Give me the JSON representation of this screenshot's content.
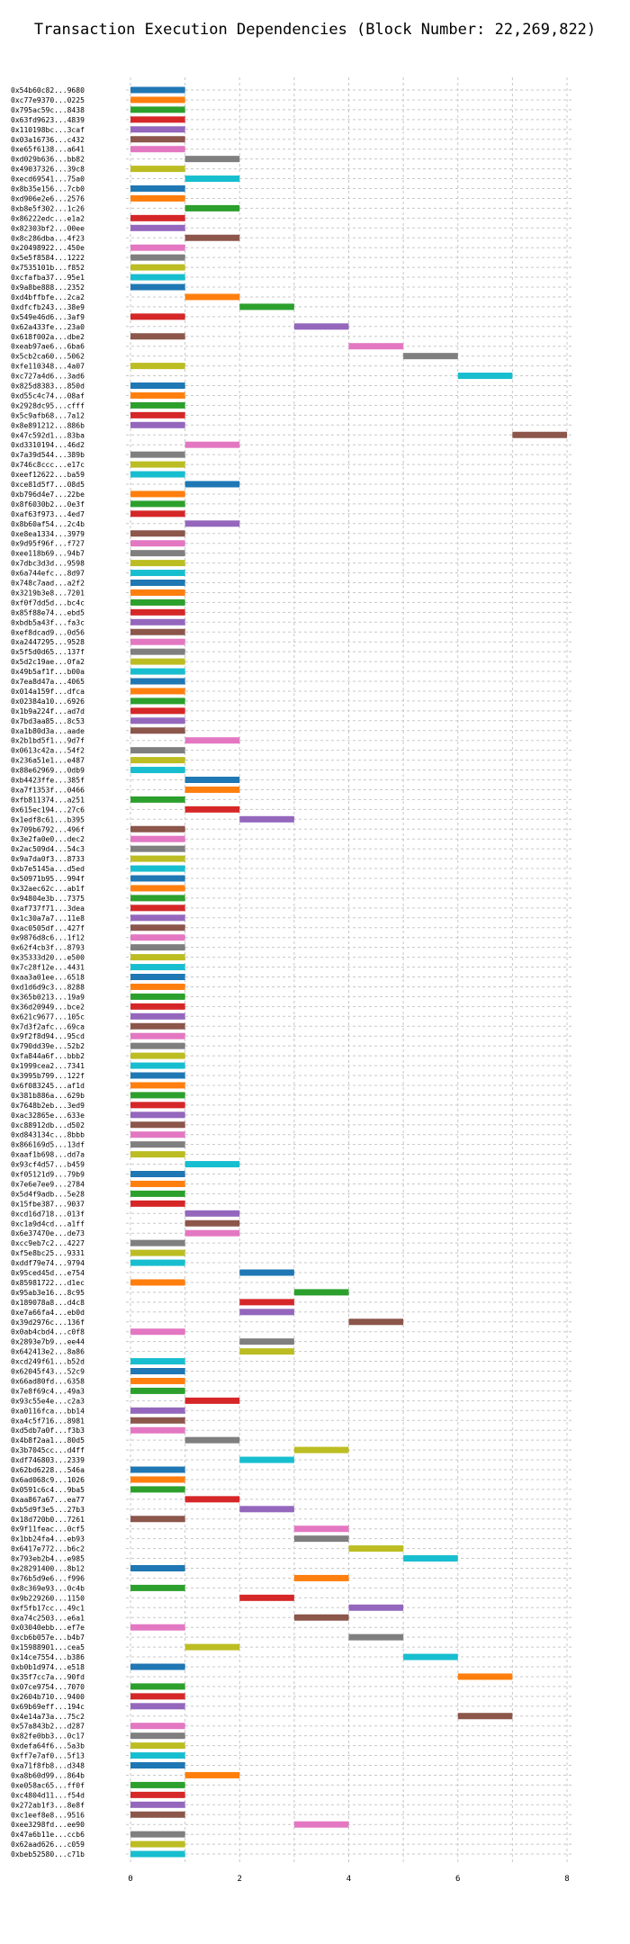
{
  "chart_data": {
    "type": "bar",
    "orientation": "horizontal",
    "title": "Transaction Execution Dependencies (Block Number: 22,269,822)",
    "xlabel": "",
    "ylabel": "",
    "xlim": [
      0,
      8
    ],
    "xticks": [
      "0",
      "2",
      "4",
      "6",
      "8"
    ],
    "grid": true,
    "colors": [
      "#1f77b4",
      "#ff7f0e",
      "#2ca02c",
      "#d62728",
      "#9467bd",
      "#8c564b",
      "#e377c2",
      "#7f7f7f",
      "#bcbd22",
      "#17becf"
    ],
    "transactions": [
      {
        "label": "0x54b60c82...9680",
        "start": 0,
        "end": 1
      },
      {
        "label": "0xc77e9370...0225",
        "start": 0,
        "end": 1
      },
      {
        "label": "0x795ac59c...8438",
        "start": 0,
        "end": 1
      },
      {
        "label": "0x63fd9623...4839",
        "start": 0,
        "end": 1
      },
      {
        "label": "0x110198bc...3caf",
        "start": 0,
        "end": 1
      },
      {
        "label": "0x03a16736...c432",
        "start": 0,
        "end": 1
      },
      {
        "label": "0xe65f6138...a641",
        "start": 0,
        "end": 1
      },
      {
        "label": "0xd029b636...bb82",
        "start": 1,
        "end": 2
      },
      {
        "label": "0x49037326...39c8",
        "start": 0,
        "end": 1
      },
      {
        "label": "0xecd69541...75a0",
        "start": 1,
        "end": 2
      },
      {
        "label": "0x8b35e156...7cb0",
        "start": 0,
        "end": 1
      },
      {
        "label": "0xd906e2e6...2576",
        "start": 0,
        "end": 1
      },
      {
        "label": "0xb8e5f302...1c26",
        "start": 1,
        "end": 2
      },
      {
        "label": "0x86222edc...e1a2",
        "start": 0,
        "end": 1
      },
      {
        "label": "0x82303bf2...00ee",
        "start": 0,
        "end": 1
      },
      {
        "label": "0x8c286dba...4f23",
        "start": 1,
        "end": 2
      },
      {
        "label": "0x20498922...450e",
        "start": 0,
        "end": 1
      },
      {
        "label": "0x5e5f8584...1222",
        "start": 0,
        "end": 1
      },
      {
        "label": "0x7535101b...f852",
        "start": 0,
        "end": 1
      },
      {
        "label": "0xcfafba37...95e1",
        "start": 0,
        "end": 1
      },
      {
        "label": "0x9a8be888...2352",
        "start": 0,
        "end": 1
      },
      {
        "label": "0xd4bffbfe...2ca2",
        "start": 1,
        "end": 2
      },
      {
        "label": "0xdfcfb243...38e9",
        "start": 2,
        "end": 3
      },
      {
        "label": "0x549e46d6...3af9",
        "start": 0,
        "end": 1
      },
      {
        "label": "0x62a433fe...23a0",
        "start": 3,
        "end": 4
      },
      {
        "label": "0x618f002a...dbe2",
        "start": 0,
        "end": 1
      },
      {
        "label": "0xeab97ae6...6ba6",
        "start": 4,
        "end": 5
      },
      {
        "label": "0x5cb2ca60...5062",
        "start": 5,
        "end": 6
      },
      {
        "label": "0xfe110348...4a07",
        "start": 0,
        "end": 1
      },
      {
        "label": "0xc727a4d6...3ad6",
        "start": 6,
        "end": 7
      },
      {
        "label": "0x825d8383...850d",
        "start": 0,
        "end": 1
      },
      {
        "label": "0xd55c4c74...08af",
        "start": 0,
        "end": 1
      },
      {
        "label": "0x2928dc95...cfff",
        "start": 0,
        "end": 1
      },
      {
        "label": "0x5c9afb68...7a12",
        "start": 0,
        "end": 1
      },
      {
        "label": "0x8e891212...886b",
        "start": 0,
        "end": 1
      },
      {
        "label": "0x47c592d1...83ba",
        "start": 7,
        "end": 8
      },
      {
        "label": "0xd3310194...46d2",
        "start": 1,
        "end": 2
      },
      {
        "label": "0x7a39d544...389b",
        "start": 0,
        "end": 1
      },
      {
        "label": "0x746c8ccc...e17c",
        "start": 0,
        "end": 1
      },
      {
        "label": "0xeef12622...ba59",
        "start": 0,
        "end": 1
      },
      {
        "label": "0xce81d5f7...08d5",
        "start": 1,
        "end": 2
      },
      {
        "label": "0xb796d4e7...22be",
        "start": 0,
        "end": 1
      },
      {
        "label": "0x8f6030b2...0e3f",
        "start": 0,
        "end": 1
      },
      {
        "label": "0xaf63f973...4ed7",
        "start": 0,
        "end": 1
      },
      {
        "label": "0x8b60af54...2c4b",
        "start": 1,
        "end": 2
      },
      {
        "label": "0xe8ea1334...3979",
        "start": 0,
        "end": 1
      },
      {
        "label": "0x9d95f96f...f727",
        "start": 0,
        "end": 1
      },
      {
        "label": "0xee118b69...94b7",
        "start": 0,
        "end": 1
      },
      {
        "label": "0x7dbc3d3d...9598",
        "start": 0,
        "end": 1
      },
      {
        "label": "0x6a744efc...8d97",
        "start": 0,
        "end": 1
      },
      {
        "label": "0x748c7aad...a2f2",
        "start": 0,
        "end": 1
      },
      {
        "label": "0x3219b3e8...7201",
        "start": 0,
        "end": 1
      },
      {
        "label": "0xf0f7dd5d...bc4c",
        "start": 0,
        "end": 1
      },
      {
        "label": "0x85f88e74...ebd5",
        "start": 0,
        "end": 1
      },
      {
        "label": "0xbdb5a43f...fa3c",
        "start": 0,
        "end": 1
      },
      {
        "label": "0xef8dcad9...0d56",
        "start": 0,
        "end": 1
      },
      {
        "label": "0xa2447295...9528",
        "start": 0,
        "end": 1
      },
      {
        "label": "0x5f5d0d65...137f",
        "start": 0,
        "end": 1
      },
      {
        "label": "0x5d2c19ae...0fa2",
        "start": 0,
        "end": 1
      },
      {
        "label": "0x49b5af1f...b00a",
        "start": 0,
        "end": 1
      },
      {
        "label": "0x7ea8d47a...4065",
        "start": 0,
        "end": 1
      },
      {
        "label": "0x014a159f...dfca",
        "start": 0,
        "end": 1
      },
      {
        "label": "0x02384a10...6926",
        "start": 0,
        "end": 1
      },
      {
        "label": "0x1b9a224f...ad7d",
        "start": 0,
        "end": 1
      },
      {
        "label": "0x7bd3aa85...8c53",
        "start": 0,
        "end": 1
      },
      {
        "label": "0xa1b80d3a...aade",
        "start": 0,
        "end": 1
      },
      {
        "label": "0x2b1bd5f1...9d7f",
        "start": 1,
        "end": 2
      },
      {
        "label": "0x0613c42a...54f2",
        "start": 0,
        "end": 1
      },
      {
        "label": "0x236a51e1...e487",
        "start": 0,
        "end": 1
      },
      {
        "label": "0x88e62969...0db9",
        "start": 0,
        "end": 1
      },
      {
        "label": "0xb4423ffe...385f",
        "start": 1,
        "end": 2
      },
      {
        "label": "0xa7f1353f...0466",
        "start": 1,
        "end": 2
      },
      {
        "label": "0xfb811374...a251",
        "start": 0,
        "end": 1
      },
      {
        "label": "0x615ec194...27c6",
        "start": 1,
        "end": 2
      },
      {
        "label": "0x1edf8c61...b395",
        "start": 2,
        "end": 3
      },
      {
        "label": "0x709b6792...496f",
        "start": 0,
        "end": 1
      },
      {
        "label": "0x3e2fa0e0...dec2",
        "start": 0,
        "end": 1
      },
      {
        "label": "0x2ac509d4...54c3",
        "start": 0,
        "end": 1
      },
      {
        "label": "0x9a7da0f3...8733",
        "start": 0,
        "end": 1
      },
      {
        "label": "0xb7e5145a...d5ed",
        "start": 0,
        "end": 1
      },
      {
        "label": "0x50971b95...994f",
        "start": 0,
        "end": 1
      },
      {
        "label": "0x32aec62c...ab1f",
        "start": 0,
        "end": 1
      },
      {
        "label": "0x94804e3b...7375",
        "start": 0,
        "end": 1
      },
      {
        "label": "0xaf737f71...3dea",
        "start": 0,
        "end": 1
      },
      {
        "label": "0x1c30a7a7...11e8",
        "start": 0,
        "end": 1
      },
      {
        "label": "0xac0505df...427f",
        "start": 0,
        "end": 1
      },
      {
        "label": "0x9876d8c6...1f12",
        "start": 0,
        "end": 1
      },
      {
        "label": "0x62f4cb3f...8793",
        "start": 0,
        "end": 1
      },
      {
        "label": "0x35333d20...e500",
        "start": 0,
        "end": 1
      },
      {
        "label": "0x7c28f12e...4431",
        "start": 0,
        "end": 1
      },
      {
        "label": "0xaa3a01ee...6518",
        "start": 0,
        "end": 1
      },
      {
        "label": "0xd1d6d9c3...8288",
        "start": 0,
        "end": 1
      },
      {
        "label": "0x365b0213...19a9",
        "start": 0,
        "end": 1
      },
      {
        "label": "0x36d20949...bce2",
        "start": 0,
        "end": 1
      },
      {
        "label": "0x621c9677...105c",
        "start": 0,
        "end": 1
      },
      {
        "label": "0x7d3f2afc...69ca",
        "start": 0,
        "end": 1
      },
      {
        "label": "0x9f2f8d94...95cd",
        "start": 0,
        "end": 1
      },
      {
        "label": "0x790dd39e...52b2",
        "start": 0,
        "end": 1
      },
      {
        "label": "0xfa844a6f...bbb2",
        "start": 0,
        "end": 1
      },
      {
        "label": "0x1999cea2...7341",
        "start": 0,
        "end": 1
      },
      {
        "label": "0x3995b799...122f",
        "start": 0,
        "end": 1
      },
      {
        "label": "0x6f083245...af1d",
        "start": 0,
        "end": 1
      },
      {
        "label": "0x381b886a...629b",
        "start": 0,
        "end": 1
      },
      {
        "label": "0x7648b2eb...3ed9",
        "start": 0,
        "end": 1
      },
      {
        "label": "0xac32865e...633e",
        "start": 0,
        "end": 1
      },
      {
        "label": "0xc88912db...d502",
        "start": 0,
        "end": 1
      },
      {
        "label": "0xd843134c...8bbb",
        "start": 0,
        "end": 1
      },
      {
        "label": "0x866169d5...13df",
        "start": 0,
        "end": 1
      },
      {
        "label": "0xaaf1b698...dd7a",
        "start": 0,
        "end": 1
      },
      {
        "label": "0x93cf4d57...b459",
        "start": 1,
        "end": 2
      },
      {
        "label": "0xf05121d9...79b9",
        "start": 0,
        "end": 1
      },
      {
        "label": "0x7e6e7ee9...2784",
        "start": 0,
        "end": 1
      },
      {
        "label": "0x5d4f9adb...5e28",
        "start": 0,
        "end": 1
      },
      {
        "label": "0x15fbe387...9037",
        "start": 0,
        "end": 1
      },
      {
        "label": "0xcd16d718...013f",
        "start": 1,
        "end": 2
      },
      {
        "label": "0xc1a9d4cd...a1ff",
        "start": 1,
        "end": 2
      },
      {
        "label": "0x6e37470e...de73",
        "start": 1,
        "end": 2
      },
      {
        "label": "0xcc9eb7c2...4227",
        "start": 0,
        "end": 1
      },
      {
        "label": "0xf5e8bc25...9331",
        "start": 0,
        "end": 1
      },
      {
        "label": "0xddf79e74...9794",
        "start": 0,
        "end": 1
      },
      {
        "label": "0x95ced45d...e754",
        "start": 2,
        "end": 3
      },
      {
        "label": "0x85981722...d1ec",
        "start": 0,
        "end": 1
      },
      {
        "label": "0x95ab3e16...8c95",
        "start": 3,
        "end": 4
      },
      {
        "label": "0x189078a8...d4c8",
        "start": 2,
        "end": 3
      },
      {
        "label": "0xe7a66fa4...eb0d",
        "start": 2,
        "end": 3
      },
      {
        "label": "0x39d2976c...136f",
        "start": 4,
        "end": 5
      },
      {
        "label": "0x0ab4cbd4...c0f8",
        "start": 0,
        "end": 1
      },
      {
        "label": "0x2893e7b9...ee44",
        "start": 2,
        "end": 3
      },
      {
        "label": "0x642413e2...8a86",
        "start": 2,
        "end": 3
      },
      {
        "label": "0xcd249f61...b52d",
        "start": 0,
        "end": 1
      },
      {
        "label": "0x62045f43...52c9",
        "start": 0,
        "end": 1
      },
      {
        "label": "0x66ad80fd...6358",
        "start": 0,
        "end": 1
      },
      {
        "label": "0x7e8f69c4...49a3",
        "start": 0,
        "end": 1
      },
      {
        "label": "0x93c55e4e...c2a3",
        "start": 1,
        "end": 2
      },
      {
        "label": "0xa0116fca...bb14",
        "start": 0,
        "end": 1
      },
      {
        "label": "0xa4c5f716...8981",
        "start": 0,
        "end": 1
      },
      {
        "label": "0xd5db7a0f...f3b3",
        "start": 0,
        "end": 1
      },
      {
        "label": "0x4b8f2aa1...80d5",
        "start": 1,
        "end": 2
      },
      {
        "label": "0x3b7045cc...d4ff",
        "start": 3,
        "end": 4
      },
      {
        "label": "0xdf746803...2339",
        "start": 2,
        "end": 3
      },
      {
        "label": "0x62bd6228...546a",
        "start": 0,
        "end": 1
      },
      {
        "label": "0x6ad068c9...1026",
        "start": 0,
        "end": 1
      },
      {
        "label": "0x0591c6c4...9ba5",
        "start": 0,
        "end": 1
      },
      {
        "label": "0xaa867a67...ea77",
        "start": 1,
        "end": 2
      },
      {
        "label": "0xb5d9f3e5...27b3",
        "start": 2,
        "end": 3
      },
      {
        "label": "0x18d720b0...7261",
        "start": 0,
        "end": 1
      },
      {
        "label": "0x9f11feac...0cf5",
        "start": 3,
        "end": 4
      },
      {
        "label": "0x1bb24fa4...eb93",
        "start": 3,
        "end": 4
      },
      {
        "label": "0x6417e772...b6c2",
        "start": 4,
        "end": 5
      },
      {
        "label": "0x793eb2b4...e985",
        "start": 5,
        "end": 6
      },
      {
        "label": "0x28291400...8b12",
        "start": 0,
        "end": 1
      },
      {
        "label": "0x76b5d9e6...f996",
        "start": 3,
        "end": 4
      },
      {
        "label": "0x8c369e93...0c4b",
        "start": 0,
        "end": 1
      },
      {
        "label": "0x9b229260...1150",
        "start": 2,
        "end": 3
      },
      {
        "label": "0xf5fb17cc...49c1",
        "start": 4,
        "end": 5
      },
      {
        "label": "0xa74c2503...e6a1",
        "start": 3,
        "end": 4
      },
      {
        "label": "0x03040ebb...ef7e",
        "start": 0,
        "end": 1
      },
      {
        "label": "0xcb6b057e...b4b7",
        "start": 4,
        "end": 5
      },
      {
        "label": "0x15988901...cea5",
        "start": 1,
        "end": 2
      },
      {
        "label": "0x14ce7554...b386",
        "start": 5,
        "end": 6
      },
      {
        "label": "0xb0b1d974...e518",
        "start": 0,
        "end": 1
      },
      {
        "label": "0x35f7cc7a...90fd",
        "start": 6,
        "end": 7
      },
      {
        "label": "0x07ce9754...7070",
        "start": 0,
        "end": 1
      },
      {
        "label": "0x2604b710...9400",
        "start": 0,
        "end": 1
      },
      {
        "label": "0x69b69eff...194c",
        "start": 0,
        "end": 1
      },
      {
        "label": "0x4e14a73a...75c2",
        "start": 6,
        "end": 7
      },
      {
        "label": "0x57a843b2...d287",
        "start": 0,
        "end": 1
      },
      {
        "label": "0x82fe0bb3...0c17",
        "start": 0,
        "end": 1
      },
      {
        "label": "0xdefa64f6...5a3b",
        "start": 0,
        "end": 1
      },
      {
        "label": "0xff7e7af0...5f13",
        "start": 0,
        "end": 1
      },
      {
        "label": "0xa71f8fb8...d348",
        "start": 0,
        "end": 1
      },
      {
        "label": "0xa8b60d99...864b",
        "start": 1,
        "end": 2
      },
      {
        "label": "0xe058ac65...ff0f",
        "start": 0,
        "end": 1
      },
      {
        "label": "0xc4804d11...f54d",
        "start": 0,
        "end": 1
      },
      {
        "label": "0x272ab1f3...8e8f",
        "start": 0,
        "end": 1
      },
      {
        "label": "0xc1eef8e8...9516",
        "start": 0,
        "end": 1
      },
      {
        "label": "0xee3298fd...ee90",
        "start": 3,
        "end": 4
      },
      {
        "label": "0x47a6b11e...ccb6",
        "start": 0,
        "end": 1
      },
      {
        "label": "0x62aad626...c059",
        "start": 0,
        "end": 1
      },
      {
        "label": "0xbeb52580...c71b",
        "start": 0,
        "end": 1
      }
    ]
  }
}
